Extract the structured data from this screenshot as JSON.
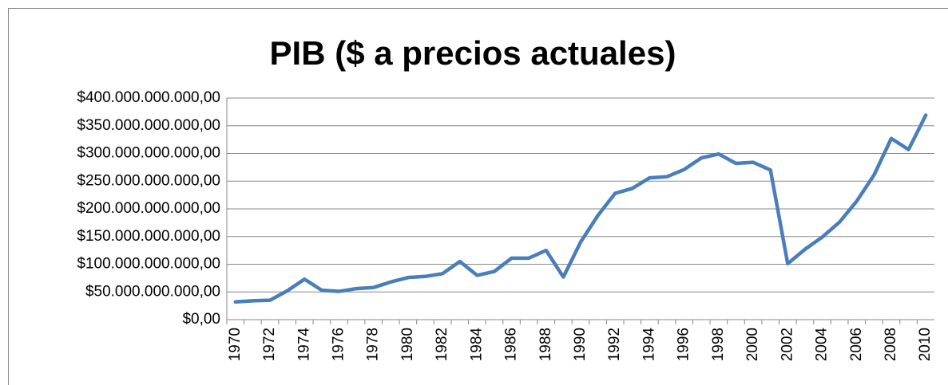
{
  "chart_data": {
    "type": "line",
    "title": "PIB ($ a precios actuales)",
    "categories": [
      "1970",
      null,
      "1972",
      null,
      "1974",
      null,
      "1976",
      null,
      "1978",
      null,
      "1980",
      null,
      "1982",
      null,
      "1984",
      null,
      "1986",
      null,
      "1988",
      null,
      "1990",
      null,
      "1992",
      null,
      "1994",
      null,
      "1996",
      null,
      "1998",
      null,
      "2000",
      null,
      "2002",
      null,
      "2004",
      null,
      "2006",
      null,
      "2008",
      null,
      "2010"
    ],
    "values": [
      32000000000,
      34000000000,
      35000000000,
      52000000000,
      73000000000,
      53000000000,
      51000000000,
      56000000000,
      58000000000,
      68000000000,
      76000000000,
      78000000000,
      83000000000,
      105000000000,
      80000000000,
      87000000000,
      111000000000,
      111000000000,
      125000000000,
      77000000000,
      140000000000,
      188000000000,
      228000000000,
      237000000000,
      256000000000,
      258000000000,
      271000000000,
      292000000000,
      299000000000,
      282000000000,
      284000000000,
      270000000000,
      101000000000,
      127000000000,
      149000000000,
      176000000000,
      214000000000,
      261000000000,
      327000000000,
      307000000000,
      369000000000
    ],
    "color": "#4a7ebb",
    "ylim": [
      0,
      400000000000
    ],
    "yticks": [
      {
        "value": 0,
        "label": "$0,00"
      },
      {
        "value": 50000000000,
        "label": "$50.000.000.000,00"
      },
      {
        "value": 100000000000,
        "label": "$100.000.000.000,00"
      },
      {
        "value": 150000000000,
        "label": "$150.000.000.000,00"
      },
      {
        "value": 200000000000,
        "label": "$200.000.000.000,00"
      },
      {
        "value": 250000000000,
        "label": "$250.000.000.000,00"
      },
      {
        "value": 300000000000,
        "label": "$300.000.000.000,00"
      },
      {
        "value": 350000000000,
        "label": "$350.000.000.000,00"
      },
      {
        "value": 400000000000,
        "label": "$400.000.000.000,00"
      }
    ],
    "grid": true
  }
}
